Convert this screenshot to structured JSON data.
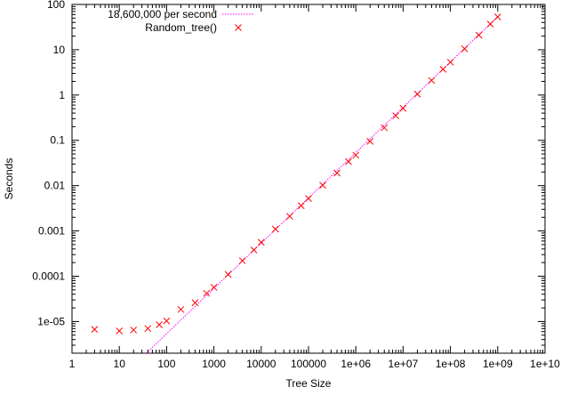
{
  "chart_data": {
    "type": "scatter",
    "xlabel": "Tree Size",
    "ylabel": "Seconds",
    "x_scale": "log",
    "y_scale": "log",
    "xlim": [
      1,
      10000000000
    ],
    "ylim": [
      2e-06,
      100
    ],
    "x_ticks": [
      {
        "value": 1,
        "label": "1"
      },
      {
        "value": 10,
        "label": "10"
      },
      {
        "value": 100,
        "label": "100"
      },
      {
        "value": 1000,
        "label": "1000"
      },
      {
        "value": 10000,
        "label": "10000"
      },
      {
        "value": 100000,
        "label": "100000"
      },
      {
        "value": 1000000,
        "label": "1e+06"
      },
      {
        "value": 10000000,
        "label": "1e+07"
      },
      {
        "value": 100000000,
        "label": "1e+08"
      },
      {
        "value": 1000000000,
        "label": "1e+09"
      },
      {
        "value": 10000000000,
        "label": "1e+10"
      }
    ],
    "y_ticks": [
      {
        "value": 1e-05,
        "label": "1e-05"
      },
      {
        "value": 0.0001,
        "label": "0.0001"
      },
      {
        "value": 0.001,
        "label": "0.001"
      },
      {
        "value": 0.01,
        "label": "0.01"
      },
      {
        "value": 0.1,
        "label": "0.1"
      },
      {
        "value": 1,
        "label": "1"
      },
      {
        "value": 10,
        "label": "10"
      },
      {
        "value": 100,
        "label": "100"
      }
    ],
    "grid": false,
    "legend_position": "top-left",
    "series": [
      {
        "name": "18,600,000 per second",
        "kind": "line",
        "color": "#ff00ff",
        "rate_per_second": 18600000
      },
      {
        "name": "Random_tree()",
        "kind": "points",
        "marker": "x",
        "color": "#ff0000",
        "x": [
          3,
          10,
          20,
          40,
          70,
          100,
          200,
          400,
          700,
          1000,
          2000,
          4000,
          7000,
          10000,
          20000,
          40000,
          70000,
          100000,
          200000,
          400000,
          700000,
          1000000,
          2000000,
          4000000,
          7000000,
          10000000,
          20000000,
          40000000,
          70000000,
          100000000,
          200000000,
          400000000,
          700000000,
          1000000000
        ],
        "y": [
          6.7e-06,
          6.2e-06,
          6.5e-06,
          7e-06,
          8.5e-06,
          1.03e-05,
          1.85e-05,
          2.6e-05,
          4.2e-05,
          5.7e-05,
          0.00011,
          0.00022,
          0.00038,
          0.00056,
          0.0011,
          0.0021,
          0.0036,
          0.0052,
          0.0102,
          0.019,
          0.034,
          0.047,
          0.095,
          0.19,
          0.35,
          0.51,
          1.05,
          2.1,
          3.7,
          5.3,
          10.5,
          21,
          37,
          53
        ]
      }
    ]
  }
}
